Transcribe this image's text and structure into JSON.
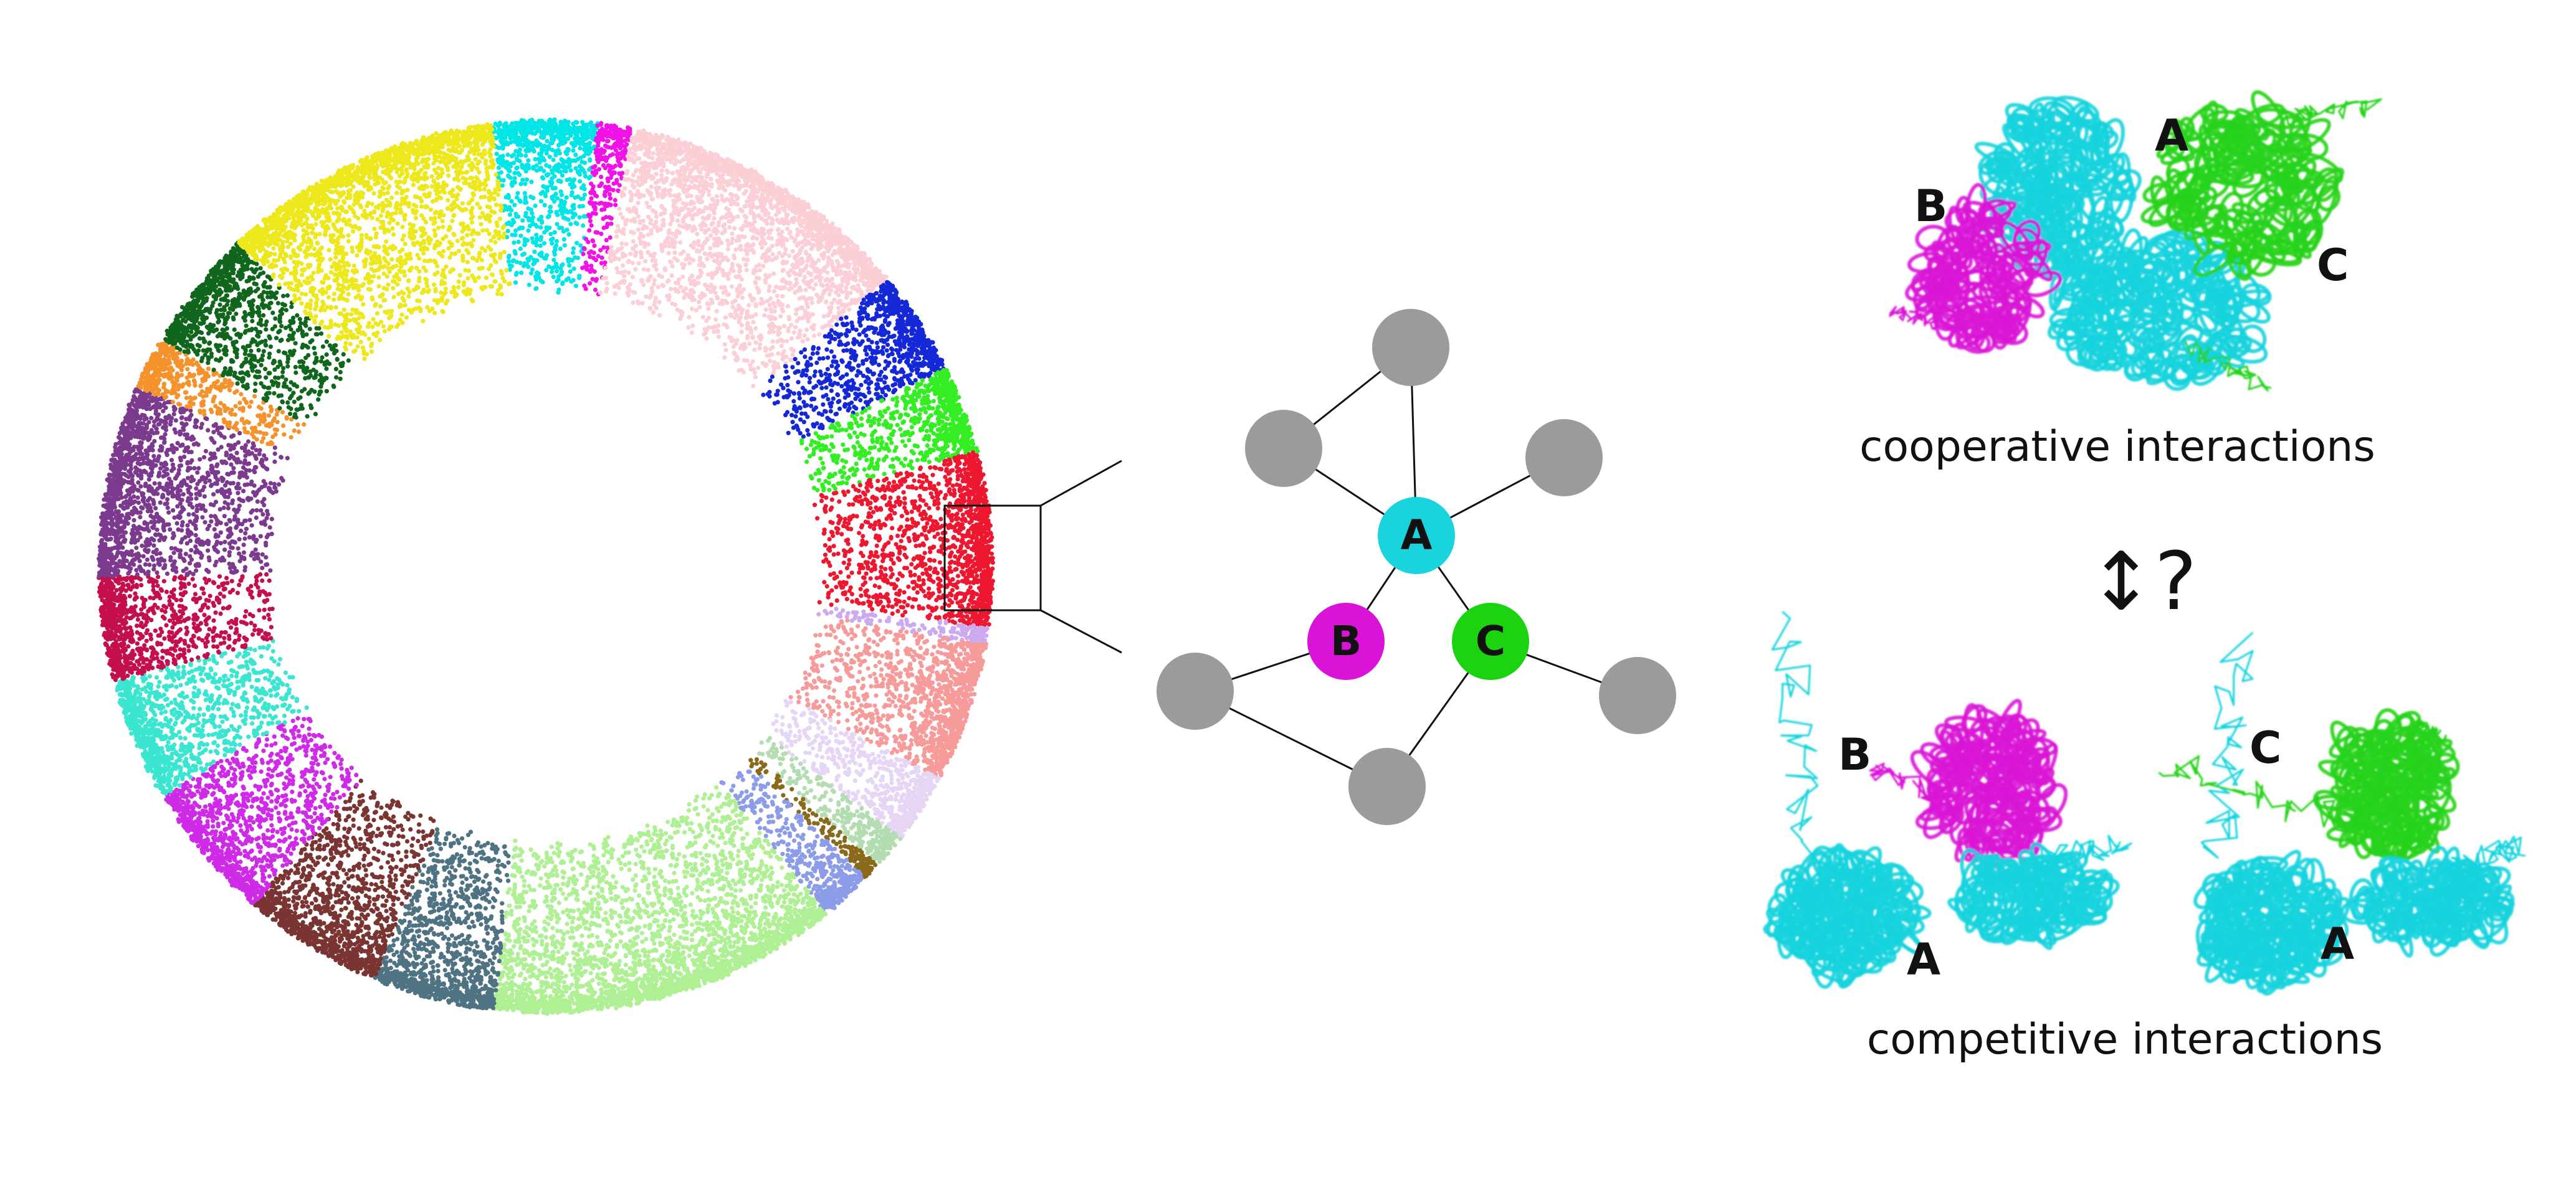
{
  "colors": {
    "node_gray": "#9b9b9b",
    "protein_a": "#19d3dd",
    "protein_b": "#d914d6",
    "protein_c": "#27d31b",
    "edge": "#111111"
  },
  "ring_clusters": [
    {
      "color": "#00e5e5",
      "weight": 6
    },
    {
      "color": "#f012e6",
      "weight": 2
    },
    {
      "color": "#fbcfd5",
      "weight": 17
    },
    {
      "color": "#1528d8",
      "weight": 6
    },
    {
      "color": "#33ee22",
      "weight": 5
    },
    {
      "color": "#ee1730",
      "weight": 10
    },
    {
      "color": "#ccaaee",
      "weight": 1
    },
    {
      "color": "#f79a9a",
      "weight": 8
    },
    {
      "color": "#e6d5f5",
      "weight": 4
    },
    {
      "color": "#b3ddb0",
      "weight": 2
    },
    {
      "color": "#8a6a1a",
      "weight": 1
    },
    {
      "color": "#8c9ce8",
      "weight": 3
    },
    {
      "color": "#b0f095",
      "weight": 20
    },
    {
      "color": "#4f7383",
      "weight": 7
    },
    {
      "color": "#7a3432",
      "weight": 8
    },
    {
      "color": "#cf2ae8",
      "weight": 8
    },
    {
      "color": "#3ae6cf",
      "weight": 7
    },
    {
      "color": "#c40f4e",
      "weight": 6
    },
    {
      "color": "#7b3a8d",
      "weight": 11
    },
    {
      "color": "#f5922c",
      "weight": 3
    },
    {
      "color": "#10661c",
      "weight": 7
    },
    {
      "color": "#ece81c",
      "weight": 16
    }
  ],
  "network": {
    "center": {
      "label": "A",
      "color": "#19d3dd"
    },
    "left": {
      "label": "B",
      "color": "#d914d6"
    },
    "right": {
      "label": "C",
      "color": "#1bd30f"
    }
  },
  "labels": {
    "coop_a": "A",
    "coop_b": "B",
    "coop_c": "C",
    "coop_caption": "cooperative interactions",
    "question": "↕?",
    "comp_b": "B",
    "comp_a1": "A",
    "comp_c": "C",
    "comp_a2": "A",
    "comp_caption": "competitive interactions"
  }
}
